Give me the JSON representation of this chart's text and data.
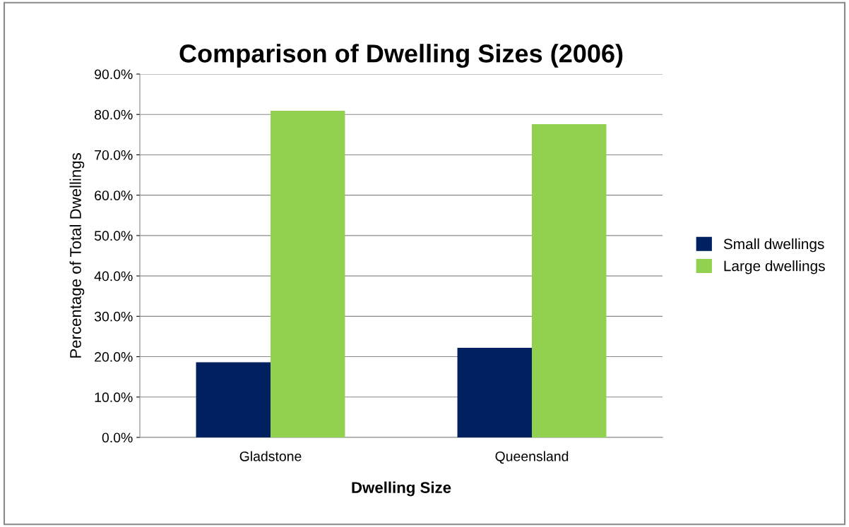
{
  "chart_data": {
    "type": "bar",
    "title": "Comparison of Dwelling Sizes (2006)",
    "xlabel": "Dwelling Size",
    "ylabel": "Percentage of Total Dwellings",
    "categories": [
      "Gladstone",
      "Queensland"
    ],
    "series": [
      {
        "name": "Small dwellings",
        "color": "#002060",
        "values": [
          18.6,
          22.2
        ]
      },
      {
        "name": "Large dwellings",
        "color": "#92d050",
        "values": [
          80.9,
          77.6
        ]
      }
    ],
    "ylim": [
      0,
      90
    ],
    "yticks": [
      {
        "value": 0,
        "label": "0.0%"
      },
      {
        "value": 10,
        "label": "10.0%"
      },
      {
        "value": 20,
        "label": "20.0%"
      },
      {
        "value": 30,
        "label": "30.0%"
      },
      {
        "value": 40,
        "label": "40.0%"
      },
      {
        "value": 50,
        "label": "50.0%"
      },
      {
        "value": 60,
        "label": "60.0%"
      },
      {
        "value": 70,
        "label": "70.0%"
      },
      {
        "value": 80,
        "label": "80.0%"
      },
      {
        "value": 90,
        "label": "90.0%"
      }
    ],
    "grid": "y",
    "legend": "right"
  }
}
